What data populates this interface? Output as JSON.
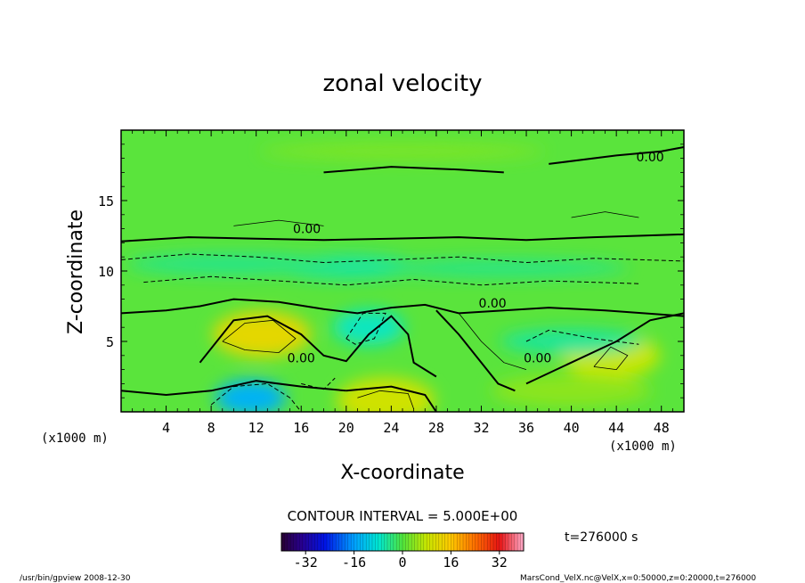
{
  "chart_data": {
    "type": "heatmap",
    "title": "zonal velocity",
    "xlabel": "X-coordinate",
    "ylabel": "Z-coordinate",
    "x_unit_label": "(x1000 m)",
    "y_unit_label": "(x1000 m)",
    "xlim": [
      0,
      50
    ],
    "ylim": [
      0,
      20
    ],
    "x_ticks": [
      4,
      8,
      12,
      16,
      20,
      24,
      28,
      32,
      36,
      40,
      44,
      48
    ],
    "y_ticks": [
      5,
      10,
      15
    ],
    "contour_label": "0.00",
    "contour_interval_text": "CONTOUR INTERVAL = 5.000E+00",
    "time_text": "t=276000 s",
    "colorbar": {
      "range": [
        -40,
        40
      ],
      "ticks": [
        "-32",
        "-16",
        "0",
        "16",
        "32"
      ]
    },
    "features": [
      {
        "x": 12.5,
        "z": 5.5,
        "value": 12,
        "kind": "positive-core"
      },
      {
        "x": 23.5,
        "z": 0.8,
        "value": 9,
        "kind": "positive-core"
      },
      {
        "x": 43.5,
        "z": 4.0,
        "value": 8,
        "kind": "positive-core"
      },
      {
        "x": 11.5,
        "z": 1.0,
        "value": -14,
        "kind": "negative-core"
      },
      {
        "x": 22.0,
        "z": 6.0,
        "value": -7,
        "kind": "negative-core"
      },
      {
        "x": 20.0,
        "z": 10.3,
        "value": -5,
        "kind": "negative-band"
      },
      {
        "x": 40.0,
        "z": 5.0,
        "value": -5,
        "kind": "negative-band"
      }
    ]
  },
  "footer": {
    "left": "/usr/bin/gpview   2008-12-30",
    "right": "MarsCond_VelX.nc@VelX,x=0:50000,z=0:20000,t=276000"
  }
}
